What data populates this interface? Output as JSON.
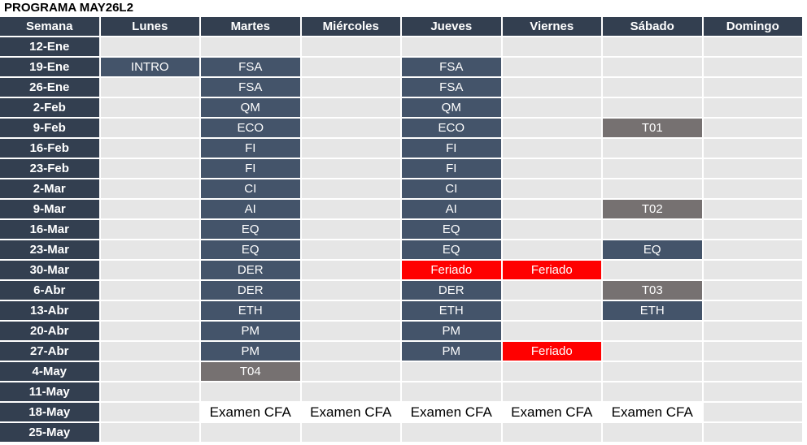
{
  "title": "PROGRAMA MAY26L2",
  "headers": [
    "Semana",
    "Lunes",
    "Martes",
    "Miércoles",
    "Jueves",
    "Viernes",
    "Sábado",
    "Domingo"
  ],
  "colors": {
    "header_bg": "#333f50",
    "session_bg": "#44546a",
    "test_bg": "#767171",
    "holiday_bg": "#ff0000",
    "empty_bg": "#e6e6e6",
    "exam_bg": "#ffffff"
  },
  "rows": [
    {
      "week": "12-Ene",
      "cells": [
        {
          "t": "",
          "s": "empty"
        },
        {
          "t": "",
          "s": "empty"
        },
        {
          "t": "",
          "s": "empty"
        },
        {
          "t": "",
          "s": "empty"
        },
        {
          "t": "",
          "s": "empty"
        },
        {
          "t": "",
          "s": "empty"
        },
        {
          "t": "",
          "s": "empty"
        }
      ]
    },
    {
      "week": "19-Ene",
      "cells": [
        {
          "t": "INTRO",
          "s": "dark"
        },
        {
          "t": "FSA",
          "s": "dark"
        },
        {
          "t": "",
          "s": "empty"
        },
        {
          "t": "FSA",
          "s": "dark"
        },
        {
          "t": "",
          "s": "empty"
        },
        {
          "t": "",
          "s": "empty"
        },
        {
          "t": "",
          "s": "empty"
        }
      ]
    },
    {
      "week": "26-Ene",
      "cells": [
        {
          "t": "",
          "s": "empty"
        },
        {
          "t": "FSA",
          "s": "dark"
        },
        {
          "t": "",
          "s": "empty"
        },
        {
          "t": "FSA",
          "s": "dark"
        },
        {
          "t": "",
          "s": "empty"
        },
        {
          "t": "",
          "s": "empty"
        },
        {
          "t": "",
          "s": "empty"
        }
      ]
    },
    {
      "week": "2-Feb",
      "cells": [
        {
          "t": "",
          "s": "empty"
        },
        {
          "t": "QM",
          "s": "dark"
        },
        {
          "t": "",
          "s": "empty"
        },
        {
          "t": "QM",
          "s": "dark"
        },
        {
          "t": "",
          "s": "empty"
        },
        {
          "t": "",
          "s": "empty"
        },
        {
          "t": "",
          "s": "empty"
        }
      ]
    },
    {
      "week": "9-Feb",
      "cells": [
        {
          "t": "",
          "s": "empty"
        },
        {
          "t": "ECO",
          "s": "dark"
        },
        {
          "t": "",
          "s": "empty"
        },
        {
          "t": "ECO",
          "s": "dark"
        },
        {
          "t": "",
          "s": "empty"
        },
        {
          "t": "T01",
          "s": "grey"
        },
        {
          "t": "",
          "s": "empty"
        }
      ]
    },
    {
      "week": "16-Feb",
      "cells": [
        {
          "t": "",
          "s": "empty"
        },
        {
          "t": "FI",
          "s": "dark"
        },
        {
          "t": "",
          "s": "empty"
        },
        {
          "t": "FI",
          "s": "dark"
        },
        {
          "t": "",
          "s": "empty"
        },
        {
          "t": "",
          "s": "empty"
        },
        {
          "t": "",
          "s": "empty"
        }
      ]
    },
    {
      "week": "23-Feb",
      "cells": [
        {
          "t": "",
          "s": "empty"
        },
        {
          "t": "FI",
          "s": "dark"
        },
        {
          "t": "",
          "s": "empty"
        },
        {
          "t": "FI",
          "s": "dark"
        },
        {
          "t": "",
          "s": "empty"
        },
        {
          "t": "",
          "s": "empty"
        },
        {
          "t": "",
          "s": "empty"
        }
      ]
    },
    {
      "week": "2-Mar",
      "cells": [
        {
          "t": "",
          "s": "empty"
        },
        {
          "t": "CI",
          "s": "dark"
        },
        {
          "t": "",
          "s": "empty"
        },
        {
          "t": "CI",
          "s": "dark"
        },
        {
          "t": "",
          "s": "empty"
        },
        {
          "t": "",
          "s": "empty"
        },
        {
          "t": "",
          "s": "empty"
        }
      ]
    },
    {
      "week": "9-Mar",
      "cells": [
        {
          "t": "",
          "s": "empty"
        },
        {
          "t": "AI",
          "s": "dark"
        },
        {
          "t": "",
          "s": "empty"
        },
        {
          "t": "AI",
          "s": "dark"
        },
        {
          "t": "",
          "s": "empty"
        },
        {
          "t": "T02",
          "s": "grey"
        },
        {
          "t": "",
          "s": "empty"
        }
      ]
    },
    {
      "week": "16-Mar",
      "cells": [
        {
          "t": "",
          "s": "empty"
        },
        {
          "t": "EQ",
          "s": "dark"
        },
        {
          "t": "",
          "s": "empty"
        },
        {
          "t": "EQ",
          "s": "dark"
        },
        {
          "t": "",
          "s": "empty"
        },
        {
          "t": "",
          "s": "empty"
        },
        {
          "t": "",
          "s": "empty"
        }
      ]
    },
    {
      "week": "23-Mar",
      "cells": [
        {
          "t": "",
          "s": "empty"
        },
        {
          "t": "EQ",
          "s": "dark"
        },
        {
          "t": "",
          "s": "empty"
        },
        {
          "t": "EQ",
          "s": "dark"
        },
        {
          "t": "",
          "s": "empty"
        },
        {
          "t": "EQ",
          "s": "dark"
        },
        {
          "t": "",
          "s": "empty"
        }
      ]
    },
    {
      "week": "30-Mar",
      "cells": [
        {
          "t": "",
          "s": "empty"
        },
        {
          "t": "DER",
          "s": "dark"
        },
        {
          "t": "",
          "s": "empty"
        },
        {
          "t": "Feriado",
          "s": "red"
        },
        {
          "t": "Feriado",
          "s": "red"
        },
        {
          "t": "",
          "s": "empty"
        },
        {
          "t": "",
          "s": "empty"
        }
      ]
    },
    {
      "week": "6-Abr",
      "cells": [
        {
          "t": "",
          "s": "empty"
        },
        {
          "t": "DER",
          "s": "dark"
        },
        {
          "t": "",
          "s": "empty"
        },
        {
          "t": "DER",
          "s": "dark"
        },
        {
          "t": "",
          "s": "empty"
        },
        {
          "t": "T03",
          "s": "grey"
        },
        {
          "t": "",
          "s": "empty"
        }
      ]
    },
    {
      "week": "13-Abr",
      "cells": [
        {
          "t": "",
          "s": "empty"
        },
        {
          "t": "ETH",
          "s": "dark"
        },
        {
          "t": "",
          "s": "empty"
        },
        {
          "t": "ETH",
          "s": "dark"
        },
        {
          "t": "",
          "s": "empty"
        },
        {
          "t": "ETH",
          "s": "dark"
        },
        {
          "t": "",
          "s": "empty"
        }
      ]
    },
    {
      "week": "20-Abr",
      "cells": [
        {
          "t": "",
          "s": "empty"
        },
        {
          "t": "PM",
          "s": "dark"
        },
        {
          "t": "",
          "s": "empty"
        },
        {
          "t": "PM",
          "s": "dark"
        },
        {
          "t": "",
          "s": "empty"
        },
        {
          "t": "",
          "s": "empty"
        },
        {
          "t": "",
          "s": "empty"
        }
      ]
    },
    {
      "week": "27-Abr",
      "cells": [
        {
          "t": "",
          "s": "empty"
        },
        {
          "t": "PM",
          "s": "dark"
        },
        {
          "t": "",
          "s": "empty"
        },
        {
          "t": "PM",
          "s": "dark"
        },
        {
          "t": "Feriado",
          "s": "red"
        },
        {
          "t": "",
          "s": "empty"
        },
        {
          "t": "",
          "s": "empty"
        }
      ]
    },
    {
      "week": "4-May",
      "cells": [
        {
          "t": "",
          "s": "empty"
        },
        {
          "t": "T04",
          "s": "grey"
        },
        {
          "t": "",
          "s": "empty"
        },
        {
          "t": "",
          "s": "empty"
        },
        {
          "t": "",
          "s": "empty"
        },
        {
          "t": "",
          "s": "empty"
        },
        {
          "t": "",
          "s": "empty"
        }
      ]
    },
    {
      "week": "11-May",
      "cells": [
        {
          "t": "",
          "s": "empty"
        },
        {
          "t": "",
          "s": "empty"
        },
        {
          "t": "",
          "s": "empty"
        },
        {
          "t": "",
          "s": "empty"
        },
        {
          "t": "",
          "s": "empty"
        },
        {
          "t": "",
          "s": "empty"
        },
        {
          "t": "",
          "s": "empty"
        }
      ]
    },
    {
      "week": "18-May",
      "cells": [
        {
          "t": "",
          "s": "empty"
        },
        {
          "t": "Examen CFA",
          "s": "white"
        },
        {
          "t": "Examen CFA",
          "s": "white"
        },
        {
          "t": "Examen CFA",
          "s": "white"
        },
        {
          "t": "Examen CFA",
          "s": "white"
        },
        {
          "t": "Examen CFA",
          "s": "white"
        },
        {
          "t": "",
          "s": "empty"
        }
      ]
    },
    {
      "week": "25-May",
      "cells": [
        {
          "t": "",
          "s": "empty"
        },
        {
          "t": "",
          "s": "empty"
        },
        {
          "t": "",
          "s": "empty"
        },
        {
          "t": "",
          "s": "empty"
        },
        {
          "t": "",
          "s": "empty"
        },
        {
          "t": "",
          "s": "empty"
        },
        {
          "t": "",
          "s": "empty"
        }
      ]
    }
  ]
}
